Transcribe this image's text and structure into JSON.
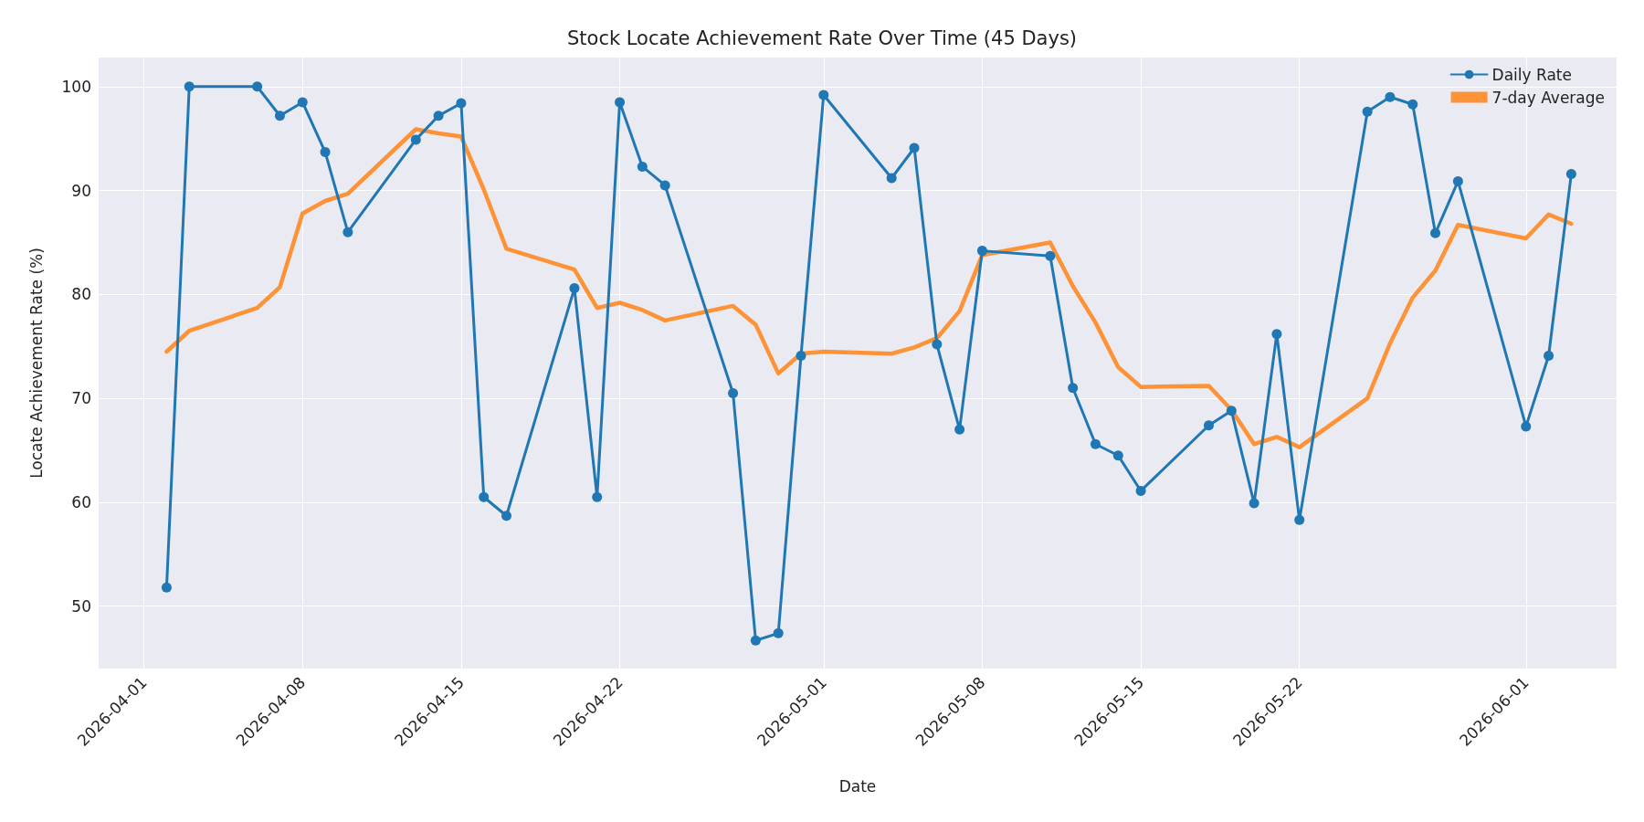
{
  "chart_data": {
    "type": "line",
    "title": "Stock Locate Achievement Rate Over Time (45 Days)",
    "xlabel": "Date",
    "ylabel": "Locate Achievement Rate (%)",
    "x": [
      "2026-04-02",
      "2026-04-03",
      "2026-04-06",
      "2026-04-07",
      "2026-04-08",
      "2026-04-09",
      "2026-04-10",
      "2026-04-13",
      "2026-04-14",
      "2026-04-15",
      "2026-04-16",
      "2026-04-17",
      "2026-04-20",
      "2026-04-21",
      "2026-04-22",
      "2026-04-23",
      "2026-04-24",
      "2026-04-27",
      "2026-04-28",
      "2026-04-29",
      "2026-04-30",
      "2026-05-01",
      "2026-05-04",
      "2026-05-05",
      "2026-05-06",
      "2026-05-07",
      "2026-05-08",
      "2026-05-11",
      "2026-05-12",
      "2026-05-13",
      "2026-05-14",
      "2026-05-15",
      "2026-05-18",
      "2026-05-19",
      "2026-05-20",
      "2026-05-21",
      "2026-05-22",
      "2026-05-25",
      "2026-05-26",
      "2026-05-27",
      "2026-05-28",
      "2026-05-29",
      "2026-06-01",
      "2026-06-02",
      "2026-06-03"
    ],
    "series": [
      {
        "name": "Daily Rate",
        "color": "#1f77b4",
        "marker": "circle",
        "values": [
          51.8,
          100,
          100,
          97.2,
          98.5,
          93.7,
          86.0,
          94.9,
          97.2,
          98.4,
          60.5,
          58.7,
          80.6,
          60.5,
          98.5,
          92.3,
          90.5,
          70.5,
          46.7,
          47.4,
          74.1,
          99.2,
          91.2,
          94.1,
          75.2,
          67.0,
          84.2,
          83.7,
          71.0,
          65.6,
          64.5,
          61.1,
          67.4,
          68.8,
          59.9,
          76.2,
          58.3,
          97.6,
          99.0,
          98.3,
          85.9,
          90.9,
          67.3,
          74.1,
          91.6
        ]
      },
      {
        "name": "7-day Average",
        "color": "#fd9236",
        "marker": "none",
        "values": [
          74.5,
          76.5,
          78.7,
          80.7,
          87.8,
          89.0,
          89.7,
          95.9,
          95.5,
          95.2,
          90.1,
          84.4,
          82.4,
          78.7,
          79.2,
          78.5,
          77.5,
          78.9,
          77.1,
          72.4,
          74.3,
          74.5,
          74.3,
          74.9,
          75.8,
          78.4,
          83.8,
          85.0,
          80.8,
          77.3,
          73.0,
          71.1,
          71.2,
          68.9,
          65.6,
          66.3,
          65.3,
          70.0,
          75.3,
          79.7,
          82.3,
          86.7,
          85.4,
          87.7,
          86.8
        ]
      }
    ],
    "xlim": [
      "2026-03-30",
      "2026-06-05"
    ],
    "xticks": [
      "2026-04-01",
      "2026-04-08",
      "2026-04-15",
      "2026-04-22",
      "2026-05-01",
      "2026-05-08",
      "2026-05-15",
      "2026-05-22",
      "2026-06-01"
    ],
    "ylim": [
      44,
      102.8
    ],
    "yticks": [
      50,
      60,
      70,
      80,
      90,
      100
    ],
    "grid": true,
    "legend": "top right",
    "line_style": "solid"
  }
}
